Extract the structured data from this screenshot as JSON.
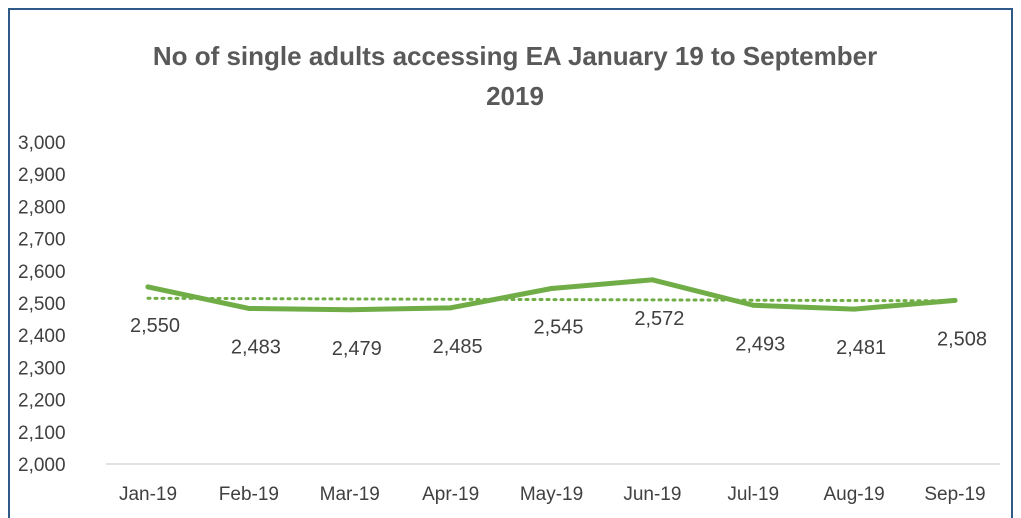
{
  "chart_data": {
    "type": "line",
    "title_line1": "No of single adults accessing EA January 19 to September",
    "title_line2": "2019",
    "categories": [
      "Jan-19",
      "Feb-19",
      "Mar-19",
      "Apr-19",
      "May-19",
      "Jun-19",
      "Jul-19",
      "Aug-19",
      "Sep-19"
    ],
    "series": [
      {
        "values": [
          2550,
          2483,
          2479,
          2485,
          2545,
          2572,
          2493,
          2481,
          2508
        ],
        "labels": [
          "2,550",
          "2,483",
          "2,479",
          "2,485",
          "2,545",
          "2,572",
          "2,493",
          "2,481",
          "2,508"
        ],
        "color": "#70ad47"
      }
    ],
    "trendline": {
      "type": "linear",
      "style": "dotted",
      "color": "#70ad47"
    },
    "ylim": [
      2000,
      3000
    ],
    "yticks": [
      2000,
      2100,
      2200,
      2300,
      2400,
      2500,
      2600,
      2700,
      2800,
      2900,
      3000
    ],
    "ytick_labels": [
      "2,000",
      "2,100",
      "2,200",
      "2,300",
      "2,400",
      "2,500",
      "2,600",
      "2,700",
      "2,800",
      "2,900",
      "3,000"
    ],
    "xlabel": "",
    "ylabel": "",
    "grid": false,
    "legend": "none",
    "axis_color": "#d9d9d9",
    "frame_color": "#2e5a88"
  }
}
